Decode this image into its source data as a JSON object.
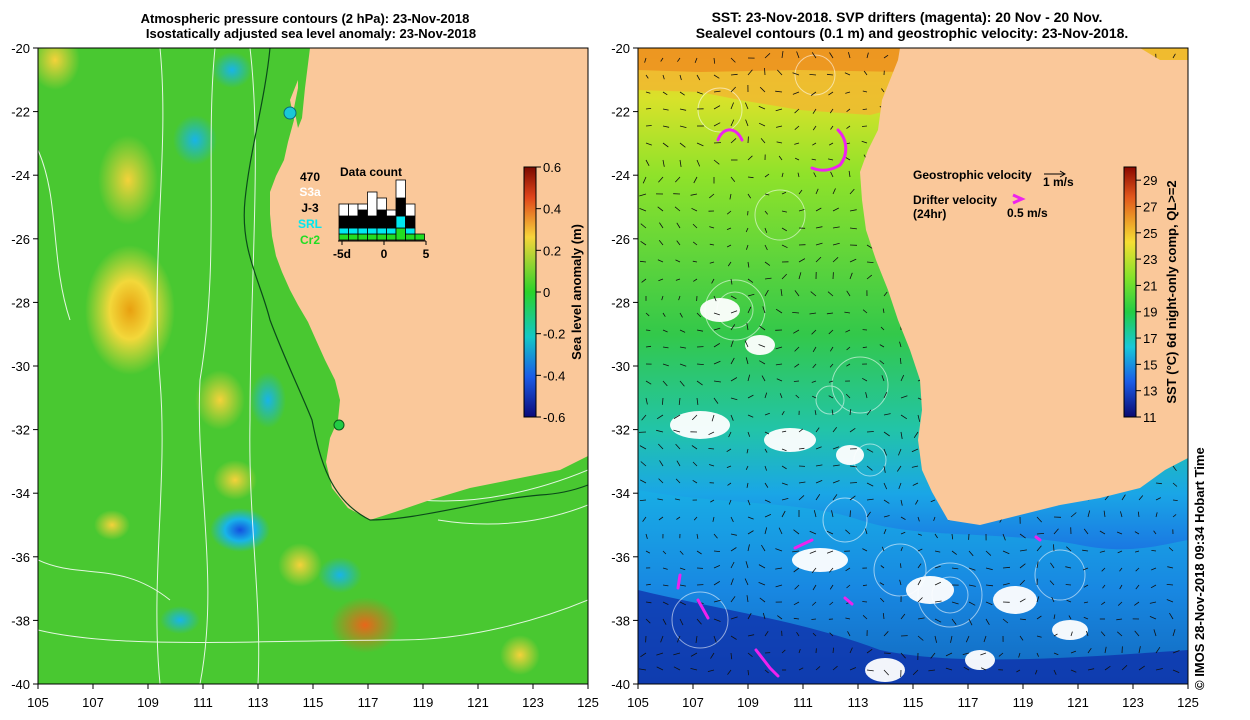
{
  "left_panel": {
    "title_line1": "Atmospheric pressure contours (2 hPa): 23-Nov-2018",
    "title_line2": "Isostatically adjusted sea level anomaly: 23-Nov-2018"
  },
  "right_panel": {
    "title_line1": "SST: 23-Nov-2018. SVP drifters (magenta): 20 Nov - 20 Nov.",
    "title_line2": "Sealevel contours (0.1 m) and geostrophic velocity: 23-Nov-2018."
  },
  "data_count": {
    "title": "Data count",
    "total": "470",
    "missions": [
      {
        "name": "S3a",
        "color": "#ffffff"
      },
      {
        "name": "J-3",
        "color": "#000000"
      },
      {
        "name": "SRL",
        "color": "#00e8f0"
      },
      {
        "name": "Cr2",
        "color": "#22dd22"
      }
    ],
    "x_ticks": [
      "-5d",
      "0",
      "5"
    ]
  },
  "velocity_legend": {
    "geo_label": "Geostrophic velocity",
    "geo_scale": "1 m/s",
    "drifter_label": "Drifter velocity",
    "drifter_sub": "(24hr)",
    "drifter_scale": "0.5 m/s"
  },
  "credit": "© IMOS 28-Nov-2018 09:34 Hobart Time",
  "colors": {
    "land": "#fac89a",
    "drifter": "#ee22ee",
    "contour": "#ffffff"
  },
  "chart_data": [
    {
      "type": "heatmap",
      "title": "Isostatically adjusted sea level anomaly: 23-Nov-2018",
      "xlim": [
        105,
        125
      ],
      "ylim": [
        -40,
        -20
      ],
      "x_ticks": [
        "105",
        "107",
        "109",
        "111",
        "113",
        "115",
        "117",
        "119",
        "121",
        "123",
        "125"
      ],
      "y_ticks": [
        "-20",
        "-22",
        "-24",
        "-26",
        "-28",
        "-30",
        "-32",
        "-34",
        "-36",
        "-38",
        "-40"
      ],
      "colorbar": {
        "label": "Sea level anomaly (m)",
        "range": [
          -0.6,
          0.6
        ],
        "ticks": [
          "0.6",
          "0.4",
          "0.2",
          "0",
          "-0.2",
          "-0.4",
          "-0.6"
        ]
      },
      "data_count_bars": {
        "x_range": [
          -5,
          5
        ],
        "S3a": [
          2,
          2,
          1,
          4,
          2,
          1,
          3,
          2,
          0
        ],
        "J-3": [
          2,
          2,
          3,
          2,
          3,
          2,
          3,
          2,
          0
        ],
        "SRL": [
          1,
          1,
          1,
          1,
          1,
          1,
          2,
          1,
          0
        ],
        "Cr2": [
          1,
          1,
          1,
          1,
          1,
          1,
          2,
          1,
          1
        ]
      }
    },
    {
      "type": "heatmap",
      "title": "SST: 23-Nov-2018",
      "xlim": [
        105,
        125
      ],
      "ylim": [
        -40,
        -20
      ],
      "x_ticks": [
        "105",
        "107",
        "109",
        "111",
        "113",
        "115",
        "117",
        "119",
        "121",
        "123",
        "125"
      ],
      "y_ticks": [
        "-20",
        "-22",
        "-24",
        "-26",
        "-28",
        "-30",
        "-32",
        "-34",
        "-36",
        "-38",
        "-40"
      ],
      "colorbar": {
        "label": "SST (°C) 6d night-only comp, QL>=2",
        "range": [
          11,
          30
        ],
        "ticks": [
          "29",
          "27",
          "25",
          "23",
          "21",
          "19",
          "17",
          "15",
          "13",
          "11"
        ]
      }
    }
  ]
}
